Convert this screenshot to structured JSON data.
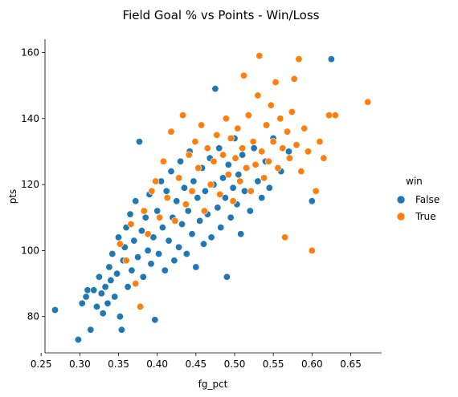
{
  "chart_data": {
    "type": "scatter",
    "title": "Field Goal % vs Points - Win/Loss",
    "xlabel": "fg_pct",
    "ylabel": "pts",
    "xlim": [
      0.255,
      0.69
    ],
    "ylim": [
      69,
      164
    ],
    "x_ticks": [
      0.25,
      0.3,
      0.35,
      0.4,
      0.45,
      0.5,
      0.55,
      0.6,
      0.65
    ],
    "x_tick_labels": [
      "0.25",
      "0.30",
      "0.35",
      "0.40",
      "0.45",
      "0.50",
      "0.55",
      "0.60",
      "0.65"
    ],
    "y_ticks": [
      80,
      100,
      120,
      140,
      160
    ],
    "y_tick_labels": [
      "80",
      "100",
      "120",
      "140",
      "160"
    ],
    "grid": false,
    "legend": {
      "title": "win",
      "placement": "right",
      "entries": [
        "False",
        "True"
      ]
    },
    "series": [
      {
        "name": "False",
        "color": "#1f77b4",
        "points": [
          [
            0.268,
            82
          ],
          [
            0.298,
            73
          ],
          [
            0.303,
            84
          ],
          [
            0.308,
            86
          ],
          [
            0.31,
            88
          ],
          [
            0.314,
            76
          ],
          [
            0.318,
            88
          ],
          [
            0.322,
            83
          ],
          [
            0.325,
            92
          ],
          [
            0.328,
            87
          ],
          [
            0.33,
            81
          ],
          [
            0.333,
            89
          ],
          [
            0.336,
            84
          ],
          [
            0.338,
            95
          ],
          [
            0.34,
            91
          ],
          [
            0.342,
            99
          ],
          [
            0.345,
            86
          ],
          [
            0.348,
            93
          ],
          [
            0.35,
            104
          ],
          [
            0.352,
            80
          ],
          [
            0.354,
            76
          ],
          [
            0.356,
            97
          ],
          [
            0.358,
            101
          ],
          [
            0.36,
            107
          ],
          [
            0.362,
            89
          ],
          [
            0.365,
            111
          ],
          [
            0.367,
            94
          ],
          [
            0.37,
            103
          ],
          [
            0.372,
            115
          ],
          [
            0.375,
            98
          ],
          [
            0.377,
            133
          ],
          [
            0.38,
            106
          ],
          [
            0.382,
            92
          ],
          [
            0.385,
            110
          ],
          [
            0.388,
            100
          ],
          [
            0.39,
            117
          ],
          [
            0.392,
            96
          ],
          [
            0.395,
            104
          ],
          [
            0.397,
            79
          ],
          [
            0.4,
            112
          ],
          [
            0.402,
            99
          ],
          [
            0.405,
            121
          ],
          [
            0.407,
            107
          ],
          [
            0.41,
            94
          ],
          [
            0.412,
            118
          ],
          [
            0.415,
            103
          ],
          [
            0.418,
            124
          ],
          [
            0.42,
            110
          ],
          [
            0.422,
            97
          ],
          [
            0.425,
            115
          ],
          [
            0.428,
            101
          ],
          [
            0.43,
            127
          ],
          [
            0.432,
            108
          ],
          [
            0.435,
            119
          ],
          [
            0.438,
            99
          ],
          [
            0.44,
            112
          ],
          [
            0.442,
            130
          ],
          [
            0.445,
            105
          ],
          [
            0.447,
            121
          ],
          [
            0.45,
            95
          ],
          [
            0.452,
            116
          ],
          [
            0.455,
            109
          ],
          [
            0.458,
            125
          ],
          [
            0.46,
            102
          ],
          [
            0.462,
            118
          ],
          [
            0.465,
            111
          ],
          [
            0.468,
            128
          ],
          [
            0.47,
            104
          ],
          [
            0.473,
            120
          ],
          [
            0.475,
            149
          ],
          [
            0.478,
            113
          ],
          [
            0.48,
            131
          ],
          [
            0.482,
            107
          ],
          [
            0.485,
            122
          ],
          [
            0.488,
            116
          ],
          [
            0.49,
            92
          ],
          [
            0.492,
            126
          ],
          [
            0.495,
            110
          ],
          [
            0.498,
            119
          ],
          [
            0.5,
            134
          ],
          [
            0.503,
            114
          ],
          [
            0.505,
            123
          ],
          [
            0.508,
            105
          ],
          [
            0.51,
            129
          ],
          [
            0.513,
            118
          ],
          [
            0.516,
            125
          ],
          [
            0.52,
            112
          ],
          [
            0.525,
            131
          ],
          [
            0.53,
            121
          ],
          [
            0.535,
            116
          ],
          [
            0.54,
            127
          ],
          [
            0.545,
            119
          ],
          [
            0.55,
            134
          ],
          [
            0.56,
            124
          ],
          [
            0.57,
            130
          ],
          [
            0.6,
            115
          ],
          [
            0.625,
            158
          ]
        ]
      },
      {
        "name": "True",
        "color": "#ff7f0e",
        "points": [
          [
            0.352,
            102
          ],
          [
            0.36,
            97
          ],
          [
            0.366,
            108
          ],
          [
            0.372,
            90
          ],
          [
            0.378,
            83
          ],
          [
            0.383,
            112
          ],
          [
            0.388,
            105
          ],
          [
            0.393,
            118
          ],
          [
            0.398,
            121
          ],
          [
            0.403,
            110
          ],
          [
            0.408,
            127
          ],
          [
            0.413,
            116
          ],
          [
            0.418,
            136
          ],
          [
            0.423,
            109
          ],
          [
            0.428,
            122
          ],
          [
            0.433,
            141
          ],
          [
            0.437,
            114
          ],
          [
            0.441,
            129
          ],
          [
            0.445,
            118
          ],
          [
            0.449,
            133
          ],
          [
            0.453,
            125
          ],
          [
            0.457,
            138
          ],
          [
            0.461,
            112
          ],
          [
            0.465,
            131
          ],
          [
            0.469,
            120
          ],
          [
            0.473,
            127
          ],
          [
            0.477,
            135
          ],
          [
            0.481,
            117
          ],
          [
            0.485,
            129
          ],
          [
            0.489,
            140
          ],
          [
            0.492,
            123
          ],
          [
            0.495,
            134
          ],
          [
            0.498,
            115
          ],
          [
            0.501,
            128
          ],
          [
            0.504,
            137
          ],
          [
            0.507,
            121
          ],
          [
            0.51,
            131
          ],
          [
            0.512,
            153
          ],
          [
            0.515,
            125
          ],
          [
            0.518,
            141
          ],
          [
            0.521,
            118
          ],
          [
            0.524,
            133
          ],
          [
            0.527,
            126
          ],
          [
            0.53,
            147
          ],
          [
            0.532,
            159
          ],
          [
            0.535,
            130
          ],
          [
            0.538,
            122
          ],
          [
            0.541,
            138
          ],
          [
            0.544,
            127
          ],
          [
            0.547,
            144
          ],
          [
            0.55,
            133
          ],
          [
            0.553,
            151
          ],
          [
            0.556,
            125
          ],
          [
            0.559,
            140
          ],
          [
            0.562,
            131
          ],
          [
            0.565,
            104
          ],
          [
            0.568,
            136
          ],
          [
            0.571,
            128
          ],
          [
            0.574,
            142
          ],
          [
            0.577,
            152
          ],
          [
            0.58,
            132
          ],
          [
            0.583,
            158
          ],
          [
            0.586,
            124
          ],
          [
            0.59,
            137
          ],
          [
            0.595,
            130
          ],
          [
            0.6,
            100
          ],
          [
            0.605,
            118
          ],
          [
            0.61,
            133
          ],
          [
            0.615,
            128
          ],
          [
            0.622,
            141
          ],
          [
            0.63,
            141
          ],
          [
            0.672,
            145
          ]
        ]
      }
    ]
  }
}
